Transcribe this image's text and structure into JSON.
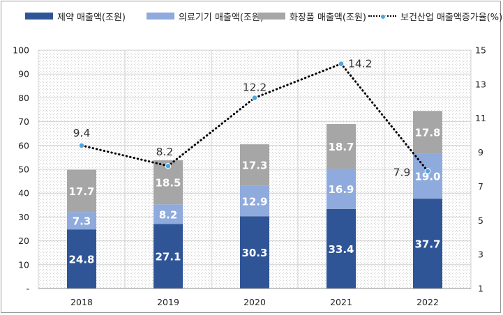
{
  "legend": {
    "pharma": "제약 매출액(조원)",
    "medical": "의료기기 매출액(조원)",
    "cosmetic": "화장품 매출액(조원)",
    "growth": "보건산업 매출액증가율(%)"
  },
  "chart_data": {
    "type": "bar",
    "stacked": true,
    "categories": [
      "2018",
      "2019",
      "2020",
      "2021",
      "2022"
    ],
    "series": [
      {
        "name": "제약 매출액(조원)",
        "color": "#2f5597",
        "values": [
          24.8,
          27.1,
          30.3,
          33.4,
          37.7
        ],
        "labels": [
          "24.8",
          "27.1",
          "30.3",
          "33.4",
          "37.7"
        ]
      },
      {
        "name": "의료기기 매출액(조원)",
        "color": "#8faadc",
        "values": [
          7.3,
          8.2,
          12.9,
          16.9,
          19.0
        ],
        "labels": [
          "7.3",
          "8.2",
          "12.9",
          "16.9",
          "19.0"
        ]
      },
      {
        "name": "화장품 매출액(조원)",
        "color": "#a6a6a6",
        "values": [
          17.7,
          18.5,
          17.3,
          18.7,
          17.8
        ],
        "labels": [
          "17.7",
          "18.5",
          "17.3",
          "18.7",
          "17.8"
        ]
      }
    ],
    "line_series": {
      "name": "보건산업 매출액증가율(%)",
      "color": "#000000",
      "marker_color": "#4ea5dc",
      "axis": "right",
      "values": [
        9.4,
        8.2,
        12.2,
        14.2,
        7.9
      ],
      "labels": [
        "9.4",
        "8.2",
        "12.2",
        "14.2",
        "7.9"
      ]
    },
    "y_left": {
      "min": 0,
      "max": 100,
      "ticks": [
        "-",
        "10",
        "20",
        "30",
        "40",
        "50",
        "60",
        "70",
        "80",
        "90",
        "100"
      ]
    },
    "y_right": {
      "min": 1,
      "max": 15,
      "ticks": [
        "1",
        "3",
        "5",
        "7",
        "9",
        "11",
        "13",
        "15"
      ]
    },
    "grid": true,
    "legend_position": "top"
  }
}
